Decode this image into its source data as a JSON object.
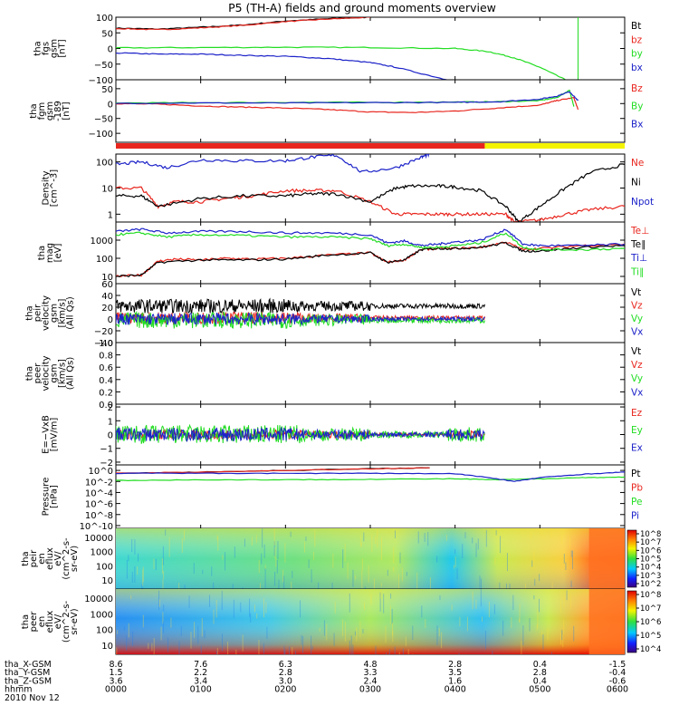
{
  "chart_data": {
    "type": "line",
    "title": "P5 (TH-A) fields and ground moments overview",
    "date": "2010 Nov 12",
    "time_ticks": [
      "0000",
      "0100",
      "0200",
      "0300",
      "0400",
      "0500",
      "0600"
    ],
    "xlim_hours": [
      0,
      6
    ],
    "colors": {
      "black": "#000000",
      "red": "#e8261e",
      "green": "#22dd22",
      "blue": "#1c22c8",
      "yellow": "#f4f400"
    },
    "panels": [
      {
        "ylabel": [
          "tha",
          "fgs",
          "gsm",
          "[nT]"
        ],
        "type": "line",
        "ylim": [
          -100,
          100
        ],
        "yticks": [
          "100",
          "50",
          "0",
          "−50",
          "−100"
        ],
        "series": [
          {
            "name": "Bt",
            "color": "#000000",
            "x": [
              0,
              0.5,
              1,
              1.5,
              2,
              2.5,
              3
            ],
            "y": [
              65,
              62,
              68,
              75,
              88,
              95,
              100
            ]
          },
          {
            "name": "bz",
            "color": "#e8261e",
            "x": [
              0,
              0.5,
              1,
              1.5,
              2,
              2.5,
              3
            ],
            "y": [
              64,
              60,
              66,
              74,
              86,
              94,
              100
            ]
          },
          {
            "name": "by",
            "color": "#22dd22",
            "x": [
              0,
              1,
              2,
              3,
              4,
              4.4,
              4.7,
              5,
              5.3
            ],
            "y": [
              2,
              3,
              4,
              3,
              0,
              -10,
              -30,
              -60,
              -100
            ]
          },
          {
            "name": "bx",
            "color": "#1c22c8",
            "x": [
              0,
              0.5,
              1,
              1.5,
              2,
              2.5,
              3,
              3.3,
              3.9
            ],
            "y": [
              -14,
              -18,
              -18,
              -22,
              -25,
              -32,
              -45,
              -60,
              -100
            ]
          }
        ]
      },
      {
        "ylabel": [
          "tha",
          "fgm",
          "gsm",
          "-189",
          "[nT]"
        ],
        "type": "line",
        "ylim": [
          -130,
          80
        ],
        "yticks": [
          "50",
          "0",
          "−50",
          "−100"
        ],
        "series": [
          {
            "name": "Bz",
            "color": "#e8261e",
            "x": [
              0,
              0.5,
              1,
              1.5,
              2,
              2.5,
              3,
              3.5,
              4,
              4.5,
              5,
              5.2,
              5.4,
              5.45
            ],
            "y": [
              0,
              -2,
              -8,
              -12,
              -15,
              -20,
              -28,
              -30,
              -25,
              -15,
              -5,
              10,
              20,
              -20
            ]
          },
          {
            "name": "By",
            "color": "#22dd22",
            "x": [
              0,
              1,
              2,
              3,
              4,
              4.5,
              5,
              5.2,
              5.35,
              5.4
            ],
            "y": [
              2,
              3,
              4,
              4,
              5,
              6,
              10,
              20,
              45,
              -10
            ]
          },
          {
            "name": "Bx",
            "color": "#1c22c8",
            "x": [
              0,
              1,
              2,
              3,
              4,
              4.5,
              5,
              5.2,
              5.35,
              5.45
            ],
            "y": [
              1,
              2,
              2,
              3,
              4,
              6,
              15,
              25,
              40,
              10
            ]
          }
        ]
      },
      {
        "type": "status_bar",
        "segments": [
          {
            "start": 0,
            "end": 4.35,
            "color": "#e8261e"
          },
          {
            "start": 4.35,
            "end": 6,
            "color": "#f4f400"
          }
        ]
      },
      {
        "ylabel": [
          "Density",
          "[cm^-3]"
        ],
        "type": "line_log",
        "ylim_log10": [
          -0.3,
          2.3
        ],
        "yticks": [
          "100",
          "10",
          "1"
        ],
        "series": [
          {
            "name": "Ne",
            "color": "#e8261e",
            "x": [
              0,
              0.3,
              0.5,
              0.7,
              1,
              1.3,
              1.6,
              2,
              2.3,
              2.6,
              3,
              3.3,
              3.5,
              3.8,
              4,
              4.3,
              4.6,
              4.7,
              5,
              5.3,
              5.6,
              6
            ],
            "y": [
              10,
              10,
              2,
              3,
              3,
              4,
              5,
              8,
              8,
              8,
              3,
              1,
              1,
              1,
              1,
              1,
              1,
              0.5,
              0.6,
              1,
              1.5,
              2
            ]
          },
          {
            "name": "Ni",
            "color": "#000000",
            "x": [
              0,
              0.3,
              0.5,
              1,
              1.5,
              2,
              2.3,
              2.6,
              3,
              3.3,
              3.5,
              3.8,
              4,
              4.3,
              4.6,
              4.75,
              5,
              5.3,
              5.6,
              6
            ],
            "y": [
              5,
              5,
              2,
              4,
              5,
              5,
              6,
              6,
              3,
              10,
              12,
              12,
              11,
              8,
              2,
              0.5,
              2,
              10,
              40,
              80
            ]
          },
          {
            "name": "Npot",
            "color": "#1c22c8",
            "x": [
              0,
              0.3,
              0.6,
              1,
              1.5,
              2,
              2.3,
              2.6,
              2.9,
              3.3,
              3.6,
              3.7
            ],
            "y": [
              80,
              100,
              60,
              120,
              110,
              110,
              150,
              180,
              40,
              60,
              150,
              200
            ]
          }
        ]
      },
      {
        "ylabel": [
          "tha",
          "mag",
          "[eV]"
        ],
        "type": "line_log",
        "ylim_log10": [
          0.6,
          4.0
        ],
        "yticks": [
          "1000",
          "100",
          "10"
        ],
        "series": [
          {
            "name": "Te⊥",
            "color": "#e8261e",
            "x": [
              0,
              0.3,
              0.5,
              0.7,
              1,
              1.3,
              1.6,
              2,
              2.5,
              3,
              3.2,
              3.4,
              3.6,
              3.8,
              4,
              4.3,
              4.6,
              4.8,
              5,
              5.5,
              6
            ],
            "y": [
              10,
              12,
              70,
              90,
              80,
              100,
              90,
              100,
              150,
              200,
              60,
              80,
              300,
              350,
              350,
              400,
              800,
              300,
              350,
              500,
              600
            ]
          },
          {
            "name": "Te∥",
            "color": "#000000",
            "x": [
              0,
              0.3,
              0.5,
              1,
              1.5,
              2,
              2.5,
              3,
              3.2,
              3.4,
              3.6,
              3.8,
              4,
              4.3,
              4.6,
              4.8,
              5,
              5.5,
              6
            ],
            "y": [
              10,
              12,
              60,
              80,
              80,
              90,
              150,
              200,
              60,
              80,
              300,
              350,
              350,
              400,
              700,
              250,
              250,
              400,
              500
            ]
          },
          {
            "name": "Ti⊥",
            "color": "#1c22c8",
            "x": [
              0,
              0.3,
              0.6,
              1,
              1.5,
              2,
              2.5,
              3,
              3.2,
              3.4,
              3.6,
              3.8,
              4,
              4.3,
              4.6,
              4.8,
              5,
              5.5,
              6
            ],
            "y": [
              3000,
              4000,
              2500,
              3000,
              3000,
              2500,
              2500,
              2000,
              700,
              900,
              500,
              600,
              800,
              1000,
              4000,
              600,
              500,
              500,
              600
            ]
          },
          {
            "name": "Ti∥",
            "color": "#22dd22",
            "x": [
              0,
              0.3,
              0.6,
              1,
              1.5,
              2,
              2.5,
              3,
              3.2,
              3.4,
              3.6,
              3.8,
              4,
              4.3,
              4.6,
              4.8,
              5,
              5.5,
              6
            ],
            "y": [
              2000,
              2500,
              1500,
              2000,
              1800,
              1500,
              1500,
              1200,
              500,
              600,
              400,
              400,
              500,
              700,
              2500,
              400,
              300,
              300,
              350
            ]
          }
        ]
      },
      {
        "ylabel": [
          "tha",
          "peir",
          "velocity",
          "gsm",
          "[km/s]",
          "(All Qs)"
        ],
        "type": "noisy",
        "ylim": [
          -40,
          60
        ],
        "yticks": [
          "60",
          "40",
          "20",
          "0",
          "−20",
          "−40"
        ],
        "x_end": 4.35,
        "series": [
          {
            "name": "Vt",
            "color": "#000000",
            "mean": 22,
            "amp": 12
          },
          {
            "name": "Vz",
            "color": "#e8261e",
            "mean": 2,
            "amp": 10
          },
          {
            "name": "Vy",
            "color": "#22dd22",
            "mean": -2,
            "amp": 14
          },
          {
            "name": "Vx",
            "color": "#1c22c8",
            "mean": 0,
            "amp": 10
          }
        ]
      },
      {
        "ylabel": [
          "tha",
          "peer",
          "velocity",
          "gsm",
          "[km/s]",
          "(All Qs)"
        ],
        "type": "empty",
        "ylim": [
          0,
          1
        ],
        "yticks": [
          "1.0",
          "0.8",
          "0.6",
          "0.4",
          "0.2",
          "0.0"
        ],
        "series": [
          {
            "name": "Vt",
            "color": "#000000"
          },
          {
            "name": "Vz",
            "color": "#e8261e"
          },
          {
            "name": "Vy",
            "color": "#22dd22"
          },
          {
            "name": "Vx",
            "color": "#1c22c8"
          }
        ]
      },
      {
        "ylabel": [
          "E=−VxB",
          "[mV/m]"
        ],
        "type": "noisy",
        "ylim": [
          -2.2,
          2.2
        ],
        "yticks": [
          "2",
          "1",
          "0",
          "−1",
          "−2"
        ],
        "x_end": 4.35,
        "series": [
          {
            "name": "Ez",
            "color": "#e8261e",
            "mean": 0,
            "amp": 0.35
          },
          {
            "name": "Ey",
            "color": "#22dd22",
            "mean": 0,
            "amp": 0.7
          },
          {
            "name": "Ex",
            "color": "#1c22c8",
            "mean": 0,
            "amp": 0.5
          }
        ]
      },
      {
        "ylabel": [
          "Pressure",
          "[nPa]"
        ],
        "type": "line_log",
        "ylim_log10": [
          -10.5,
          1
        ],
        "yticks": [
          "10^0",
          "10^-2",
          "10^-4",
          "10^-6",
          "10^-8",
          "10^-10"
        ],
        "series": [
          {
            "name": "Pt",
            "color": "#000000",
            "x": [
              0,
              1,
              2,
              3,
              3.7
            ],
            "y": [
              0.3,
              0.5,
              1,
              2,
              3
            ]
          },
          {
            "name": "Pb",
            "color": "#e8261e",
            "x": [
              0,
              1,
              2,
              3,
              3.7
            ],
            "y": [
              0.3,
              0.5,
              1,
              2,
              3
            ]
          },
          {
            "name": "Pe",
            "color": "#22dd22",
            "x": [
              0,
              1,
              2,
              3,
              4,
              4.5,
              5,
              5.5,
              6
            ],
            "y": [
              0.015,
              0.02,
              0.02,
              0.025,
              0.03,
              0.02,
              0.03,
              0.05,
              0.06
            ]
          },
          {
            "name": "Pi",
            "color": "#1c22c8",
            "x": [
              0,
              1,
              2,
              3,
              4,
              4.4,
              4.7,
              5,
              5.5,
              6
            ],
            "y": [
              0.3,
              0.3,
              0.3,
              0.3,
              0.25,
              0.05,
              0.01,
              0.05,
              0.2,
              0.5
            ]
          }
        ]
      },
      {
        "ylabel": [
          "tha",
          "peir",
          "en",
          "eflux",
          "eV/",
          "(cm^2-s-",
          "sr-eV)"
        ],
        "type": "spectrogram",
        "yticks": [
          "10000",
          "1000",
          "100",
          "10"
        ],
        "cbar_ticks": [
          "10^8",
          "10^7",
          "10^6",
          "10^5",
          "10^4",
          "10^3",
          "10^2"
        ]
      },
      {
        "ylabel": [
          "tha",
          "peer",
          "en",
          "eflux",
          "eV/",
          "(cm^2-s-",
          "sr-eV)"
        ],
        "type": "spectrogram",
        "yticks": [
          "10000",
          "1000",
          "100",
          "10"
        ],
        "cbar_ticks": [
          "10^8",
          "10^7",
          "10^6",
          "10^5",
          "10^4"
        ]
      }
    ],
    "ephemeris": {
      "labels": [
        "tha_X-GSM",
        "tha_Y-GSM",
        "tha_Z-GSM",
        "hhmm"
      ],
      "rows": [
        [
          "8.6",
          "7.6",
          "6.3",
          "4.8",
          "2.8",
          "0.4",
          "-1.5"
        ],
        [
          "1.5",
          "2.2",
          "2.8",
          "3.3",
          "3.5",
          "2.8",
          "-0.4"
        ],
        [
          "3.6",
          "3.4",
          "3.0",
          "2.4",
          "1.6",
          "0.4",
          "-0.6"
        ]
      ]
    }
  }
}
